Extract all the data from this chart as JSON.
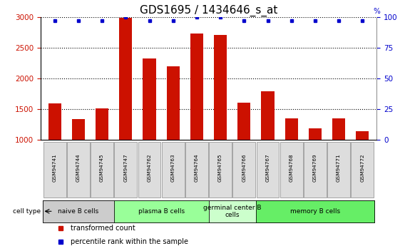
{
  "title": "GDS1695 / 1434646_s_at",
  "samples": [
    "GSM94741",
    "GSM94744",
    "GSM94745",
    "GSM94747",
    "GSM94762",
    "GSM94763",
    "GSM94764",
    "GSM94765",
    "GSM94766",
    "GSM94767",
    "GSM94768",
    "GSM94769",
    "GSM94771",
    "GSM94772"
  ],
  "transformed_count": [
    1590,
    1340,
    1510,
    2990,
    2330,
    2200,
    2730,
    2710,
    1610,
    1790,
    1355,
    1185,
    1355,
    1140
  ],
  "percentile_rank": [
    97,
    97,
    97,
    100,
    97,
    97,
    100,
    100,
    97,
    97,
    97,
    97,
    97,
    97
  ],
  "bar_color": "#cc1100",
  "dot_color": "#0000cc",
  "ylim_left": [
    1000,
    3000
  ],
  "ylim_right": [
    0,
    100
  ],
  "yticks_left": [
    1000,
    1500,
    2000,
    2500,
    3000
  ],
  "yticks_right": [
    0,
    25,
    50,
    75,
    100
  ],
  "cell_groups": [
    {
      "label": "naive B cells",
      "start": 0,
      "end": 3,
      "color": "#cccccc"
    },
    {
      "label": "plasma B cells",
      "start": 3,
      "end": 7,
      "color": "#99ff99"
    },
    {
      "label": "germinal center B\ncells",
      "start": 7,
      "end": 9,
      "color": "#ccffcc"
    },
    {
      "label": "memory B cells",
      "start": 9,
      "end": 14,
      "color": "#66ee66"
    }
  ],
  "cell_type_label": "cell type",
  "legend_items": [
    {
      "label": "transformed count",
      "color": "#cc1100"
    },
    {
      "label": "percentile rank within the sample",
      "color": "#0000cc"
    }
  ],
  "bg_color": "#ffffff",
  "grid_color": "#000000",
  "title_fontsize": 11,
  "tick_fontsize": 7.5,
  "bar_width": 0.55,
  "sample_box_color": "#dddddd",
  "sample_box_border": "#888888"
}
